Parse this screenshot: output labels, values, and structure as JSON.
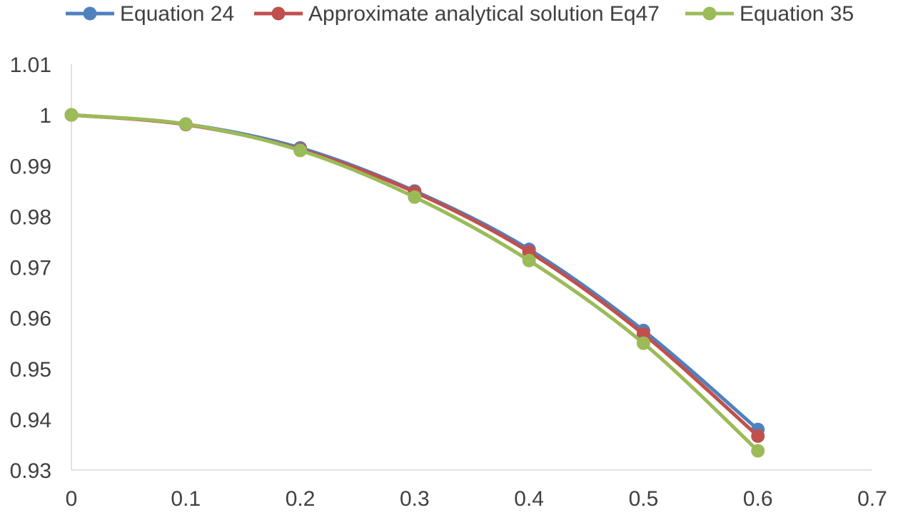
{
  "chart_data": {
    "type": "line",
    "title": "",
    "xlabel": "",
    "ylabel": "",
    "xlim": [
      0,
      0.7
    ],
    "ylim": [
      0.93,
      1.01
    ],
    "x_ticks": [
      "0",
      "0.1",
      "0.2",
      "0.3",
      "0.4",
      "0.5",
      "0.6",
      "0.7"
    ],
    "y_ticks": [
      "1.01",
      "1",
      "0.99",
      "0.98",
      "0.97",
      "0.96",
      "0.95",
      "0.94",
      "0.93"
    ],
    "grid": false,
    "legend_position": "top",
    "x": [
      0,
      0.1,
      0.2,
      0.3,
      0.4,
      0.5,
      0.6
    ],
    "series": [
      {
        "name": "Equation 24",
        "color": "#4f81bd",
        "values": [
          1.0,
          0.9982,
          0.9935,
          0.985,
          0.9735,
          0.9575,
          0.938
        ]
      },
      {
        "name": "Approximate analytical solution Eq47",
        "color": "#c0504d",
        "values": [
          1.0,
          0.9981,
          0.9932,
          0.9848,
          0.973,
          0.9568,
          0.9367
        ]
      },
      {
        "name": "Equation 35",
        "color": "#9bbb59",
        "values": [
          1.0,
          0.9982,
          0.993,
          0.9838,
          0.9713,
          0.955,
          0.9338
        ]
      }
    ]
  }
}
